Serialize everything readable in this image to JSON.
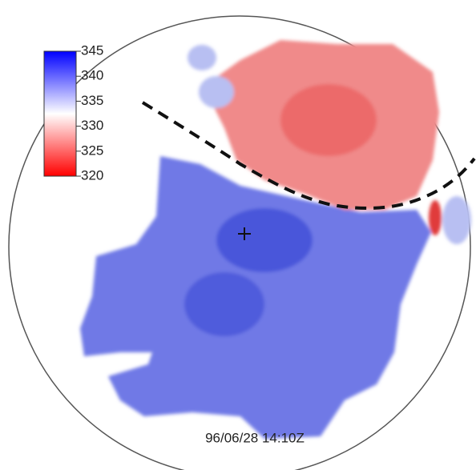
{
  "colorbar": {
    "lim": [
      320,
      345
    ],
    "ticks": [
      345,
      340,
      335,
      330,
      325,
      320
    ],
    "colors": [
      "#ff0000",
      "#ffffff",
      "#0000ff"
    ]
  },
  "timestamp": "96/06/28 14:10Z"
}
